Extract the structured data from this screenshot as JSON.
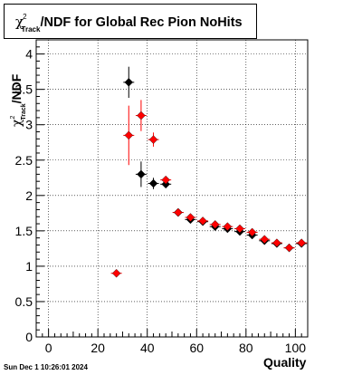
{
  "timestamp": "Sun Dec  1 10:26:01 2024",
  "chart_data": {
    "type": "scatter",
    "title": "/NDF for Global Rec Pion NoHits",
    "title_prefix": "χ",
    "title_sup": "2",
    "title_sub": "Track",
    "xlabel": "Quality",
    "ylabel": "/NDF",
    "ylabel_prefix": "χ",
    "ylabel_sup": "2",
    "ylabel_sub": "Track",
    "xlim": [
      -5,
      105
    ],
    "ylim": [
      0,
      4.2
    ],
    "x_ticks": [
      0,
      20,
      40,
      60,
      80,
      100
    ],
    "x_tick_labels": [
      "0",
      "20",
      "40",
      "60",
      "80",
      "100"
    ],
    "y_ticks": [
      0,
      0.5,
      1,
      1.5,
      2,
      2.5,
      3,
      3.5,
      4
    ],
    "y_tick_labels": [
      "0",
      "0.5",
      "1",
      "1.5",
      "2",
      "2.5",
      "3",
      "3.5",
      "4"
    ],
    "grid": true,
    "colors": {
      "series_1": "#000000",
      "series_2": "#ff0000"
    },
    "series": [
      {
        "marker": "diamond",
        "color": "#000000",
        "points": [
          {
            "x": 32.5,
            "y": 3.6,
            "err": 0.22
          },
          {
            "x": 37.5,
            "y": 2.3,
            "err": 0.18
          },
          {
            "x": 42.5,
            "y": 2.17,
            "err": 0.08
          },
          {
            "x": 47.5,
            "y": 2.16,
            "err": 0.05
          },
          {
            "x": 52.5,
            "y": 1.76,
            "err": 0.03
          },
          {
            "x": 57.5,
            "y": 1.66,
            "err": 0.03
          },
          {
            "x": 62.5,
            "y": 1.63,
            "err": 0.02
          },
          {
            "x": 67.5,
            "y": 1.56,
            "err": 0.02
          },
          {
            "x": 72.5,
            "y": 1.53,
            "err": 0.02
          },
          {
            "x": 77.5,
            "y": 1.49,
            "err": 0.02
          },
          {
            "x": 82.5,
            "y": 1.44,
            "err": 0.02
          },
          {
            "x": 87.5,
            "y": 1.36,
            "err": 0.02
          },
          {
            "x": 92.5,
            "y": 1.32,
            "err": 0.02
          },
          {
            "x": 97.5,
            "y": 1.26,
            "err": 0.02
          },
          {
            "x": 102.5,
            "y": 1.32,
            "err": 0.02
          }
        ]
      },
      {
        "marker": "diamond",
        "color": "#ff0000",
        "points": [
          {
            "x": 27.5,
            "y": 0.9,
            "err": 0.0
          },
          {
            "x": 32.5,
            "y": 2.85,
            "err": 0.42
          },
          {
            "x": 37.5,
            "y": 3.13,
            "err": 0.22
          },
          {
            "x": 42.5,
            "y": 2.79,
            "err": 0.1
          },
          {
            "x": 47.5,
            "y": 2.22,
            "err": 0.05
          },
          {
            "x": 52.5,
            "y": 1.76,
            "err": 0.03
          },
          {
            "x": 57.5,
            "y": 1.69,
            "err": 0.03
          },
          {
            "x": 62.5,
            "y": 1.64,
            "err": 0.02
          },
          {
            "x": 67.5,
            "y": 1.59,
            "err": 0.02
          },
          {
            "x": 72.5,
            "y": 1.56,
            "err": 0.02
          },
          {
            "x": 77.5,
            "y": 1.53,
            "err": 0.02
          },
          {
            "x": 82.5,
            "y": 1.48,
            "err": 0.02
          },
          {
            "x": 87.5,
            "y": 1.38,
            "err": 0.02
          },
          {
            "x": 92.5,
            "y": 1.33,
            "err": 0.02
          },
          {
            "x": 97.5,
            "y": 1.26,
            "err": 0.02
          },
          {
            "x": 102.5,
            "y": 1.33,
            "err": 0.02
          }
        ]
      }
    ]
  }
}
